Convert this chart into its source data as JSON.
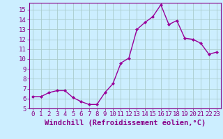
{
  "x": [
    0,
    1,
    2,
    3,
    4,
    5,
    6,
    7,
    8,
    9,
    10,
    11,
    12,
    13,
    14,
    15,
    16,
    17,
    18,
    19,
    20,
    21,
    22,
    23
  ],
  "y": [
    6.2,
    6.2,
    6.6,
    6.8,
    6.8,
    6.1,
    5.7,
    5.4,
    5.4,
    6.6,
    7.5,
    9.6,
    10.1,
    13.0,
    13.7,
    14.3,
    15.5,
    13.5,
    13.9,
    12.1,
    12.0,
    11.6,
    10.5,
    10.7
  ],
  "line_color": "#990099",
  "marker": "D",
  "marker_size": 2,
  "line_width": 1.0,
  "bg_color": "#cceeff",
  "grid_color": "#aacccc",
  "xlabel": "Windchill (Refroidissement éolien,°C)",
  "xlim": [
    -0.5,
    23.5
  ],
  "ylim": [
    5,
    15.7
  ],
  "yticks": [
    5,
    6,
    7,
    8,
    9,
    10,
    11,
    12,
    13,
    14,
    15
  ],
  "xticks": [
    0,
    1,
    2,
    3,
    4,
    5,
    6,
    7,
    8,
    9,
    10,
    11,
    12,
    13,
    14,
    15,
    16,
    17,
    18,
    19,
    20,
    21,
    22,
    23
  ],
  "tick_color": "#880088",
  "label_color": "#880088",
  "tick_fontsize": 6.5,
  "xlabel_fontsize": 7.5
}
